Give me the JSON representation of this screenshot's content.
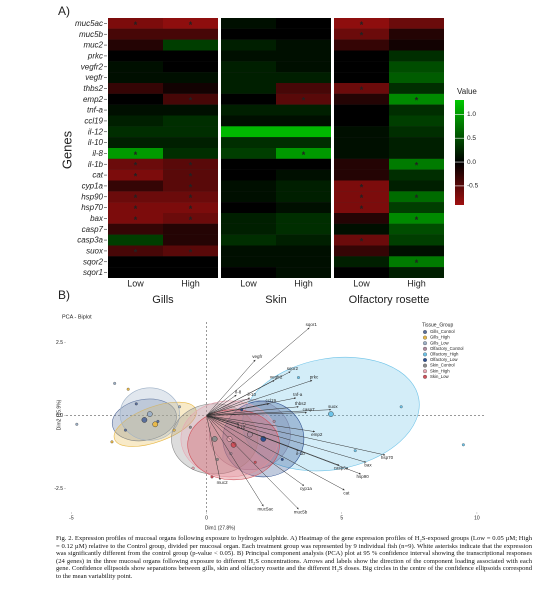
{
  "heatmap": {
    "panel_label": "A)",
    "y_label": "Genes",
    "columns": [
      "Low",
      "High"
    ],
    "facets": [
      "Gills",
      "Skin",
      "Olfactory rosette"
    ],
    "significance_mark": "*",
    "legend_title": "Value",
    "scale_lim": [
      -0.9,
      1.3
    ],
    "scale_ticks": [
      {
        "value": 1,
        "label": "1.0"
      },
      0.5,
      {
        "value": 0,
        "label": "0.0"
      },
      -0.5
    ],
    "negative_color": "#a01010",
    "zero_color": "#000000",
    "positive_color": "#00c800",
    "rows": [
      {
        "gene": "muc5ac",
        "values": [
          -0.7,
          -0.8,
          0.1,
          0.0,
          -0.8,
          -0.6
        ],
        "significant": [
          true,
          true,
          false,
          false,
          true,
          false
        ]
      },
      {
        "gene": "muc5b",
        "values": [
          -0.4,
          -0.4,
          0.0,
          0.0,
          -0.6,
          -0.2
        ],
        "significant": [
          false,
          false,
          false,
          false,
          true,
          false
        ]
      },
      {
        "gene": "muc2",
        "values": [
          -0.2,
          0.4,
          0.2,
          0.1,
          -0.3,
          -0.1
        ],
        "significant": [
          false,
          false,
          false,
          false,
          false,
          false
        ]
      },
      {
        "gene": "prkc",
        "values": [
          0.0,
          0.0,
          0.1,
          0.1,
          0.0,
          0.3
        ],
        "significant": [
          false,
          false,
          false,
          false,
          false,
          false
        ]
      },
      {
        "gene": "vegfr2",
        "values": [
          0.1,
          0.0,
          0.2,
          0.1,
          0.0,
          0.5
        ],
        "significant": [
          false,
          false,
          false,
          false,
          false,
          false
        ]
      },
      {
        "gene": "vegfr",
        "values": [
          0.1,
          0.1,
          0.2,
          0.2,
          0.0,
          0.6
        ],
        "significant": [
          false,
          false,
          false,
          false,
          false,
          false
        ]
      },
      {
        "gene": "thbs2",
        "values": [
          -0.3,
          -0.1,
          0.2,
          -0.4,
          -0.6,
          0.3
        ],
        "significant": [
          false,
          false,
          false,
          false,
          true,
          false
        ]
      },
      {
        "gene": "emp2",
        "values": [
          0.0,
          -0.4,
          0.0,
          -0.5,
          -0.2,
          0.9
        ],
        "significant": [
          false,
          true,
          false,
          true,
          false,
          true
        ]
      },
      {
        "gene": "tnf-a",
        "values": [
          0.1,
          0.1,
          0.2,
          0.2,
          0.0,
          0.3
        ],
        "significant": [
          false,
          false,
          false,
          false,
          false,
          false
        ]
      },
      {
        "gene": "ccl19",
        "values": [
          0.2,
          0.3,
          0.1,
          0.1,
          0.0,
          0.4
        ],
        "significant": [
          false,
          false,
          false,
          false,
          false,
          false
        ]
      },
      {
        "gene": "il-12",
        "values": [
          0.3,
          0.3,
          1.2,
          1.2,
          0.1,
          0.3
        ],
        "significant": [
          false,
          false,
          false,
          false,
          false,
          false
        ]
      },
      {
        "gene": "il-10",
        "values": [
          0.2,
          0.2,
          0.3,
          0.3,
          0.1,
          0.2
        ],
        "significant": [
          false,
          false,
          false,
          false,
          false,
          false
        ]
      },
      {
        "gene": "il-8",
        "values": [
          1.0,
          0.3,
          0.4,
          1.0,
          0.1,
          0.2
        ],
        "significant": [
          true,
          false,
          false,
          true,
          false,
          false
        ]
      },
      {
        "gene": "il-1b",
        "values": [
          -0.6,
          -0.5,
          0.0,
          0.0,
          -0.2,
          0.8
        ],
        "significant": [
          true,
          true,
          false,
          false,
          false,
          true
        ]
      },
      {
        "gene": "cat",
        "values": [
          -0.7,
          -0.5,
          0.0,
          0.1,
          -0.2,
          0.3
        ],
        "significant": [
          true,
          true,
          false,
          false,
          false,
          false
        ]
      },
      {
        "gene": "cyp1a",
        "values": [
          -0.3,
          -0.5,
          0.1,
          0.2,
          -0.7,
          0.2
        ],
        "significant": [
          false,
          true,
          false,
          false,
          true,
          false
        ]
      },
      {
        "gene": "hsp90",
        "values": [
          -0.6,
          -0.6,
          0.1,
          0.2,
          -0.7,
          0.7
        ],
        "significant": [
          true,
          true,
          false,
          false,
          true,
          true
        ]
      },
      {
        "gene": "hsp70",
        "values": [
          -0.7,
          -0.7,
          0.0,
          0.1,
          -0.7,
          0.4
        ],
        "significant": [
          true,
          true,
          false,
          false,
          true,
          false
        ]
      },
      {
        "gene": "bax",
        "values": [
          -0.7,
          -0.6,
          0.2,
          0.3,
          -0.2,
          0.9
        ],
        "significant": [
          true,
          true,
          false,
          false,
          false,
          true
        ]
      },
      {
        "gene": "casp7",
        "values": [
          -0.3,
          -0.2,
          0.2,
          0.3,
          0.1,
          0.5
        ],
        "significant": [
          false,
          false,
          false,
          false,
          false,
          false
        ]
      },
      {
        "gene": "casp3a",
        "values": [
          0.4,
          -0.2,
          0.3,
          0.2,
          -0.6,
          0.4
        ],
        "significant": [
          false,
          false,
          false,
          false,
          true,
          false
        ]
      },
      {
        "gene": "suox",
        "values": [
          -0.4,
          -0.5,
          0.1,
          0.1,
          -0.3,
          0.1
        ],
        "significant": [
          true,
          true,
          false,
          false,
          false,
          false
        ]
      },
      {
        "gene": "sqor2",
        "values": [
          0.0,
          0.0,
          0.1,
          0.1,
          0.2,
          0.8
        ],
        "significant": [
          false,
          false,
          false,
          false,
          false,
          true
        ]
      },
      {
        "gene": "sqor1",
        "values": [
          0.0,
          0.0,
          0.0,
          0.1,
          0.0,
          0.2
        ],
        "significant": [
          false,
          false,
          false,
          false,
          false,
          false
        ]
      }
    ]
  },
  "pca": {
    "panel_label": "B)",
    "title": "PCA - Biplot",
    "x_label": "Dim1 (27.8%)",
    "y_label": "Dim2 (15.9%)",
    "xlim": [
      -5.2,
      10.3
    ],
    "ylim": [
      -3.3,
      3.2
    ],
    "xticks": [
      -5,
      0,
      5,
      10
    ],
    "yticks": [
      2.5,
      {
        "value": 0,
        "label": "0.0"
      },
      -2.5
    ],
    "legend_title": "Tissue_Group",
    "loadings": [
      {
        "name": "vegfr",
        "x": 1.8,
        "y": 1.9
      },
      {
        "name": "sqor2",
        "x": 3.1,
        "y": 1.5
      },
      {
        "name": "vegfr2",
        "x": 2.5,
        "y": 1.2
      },
      {
        "name": "prkc",
        "x": 3.9,
        "y": 1.2
      },
      {
        "name": "sqor1",
        "x": 3.8,
        "y": 3.0
      },
      {
        "name": "il-8",
        "x": 1.1,
        "y": 0.7
      },
      {
        "name": "il-10",
        "x": 1.6,
        "y": 0.6
      },
      {
        "name": "ccl19",
        "x": 2.3,
        "y": 0.4
      },
      {
        "name": "tnf-a",
        "x": 3.3,
        "y": 0.6
      },
      {
        "name": "thbs2",
        "x": 3.4,
        "y": 0.3
      },
      {
        "name": "casp7",
        "x": 3.7,
        "y": 0.1
      },
      {
        "name": "suox",
        "x": 4.6,
        "y": 0.2
      },
      {
        "name": "il-12",
        "x": 1.2,
        "y": -0.3
      },
      {
        "name": "emp2",
        "x": 4.0,
        "y": -0.55
      },
      {
        "name": "hsp70",
        "x": 6.6,
        "y": -1.35
      },
      {
        "name": "bax",
        "x": 5.9,
        "y": -1.6
      },
      {
        "name": "casp3a",
        "x": 4.9,
        "y": -1.7
      },
      {
        "name": "hsp90",
        "x": 5.7,
        "y": -2.0
      },
      {
        "name": "il-1b",
        "x": 3.4,
        "y": -1.2
      },
      {
        "name": "cyp1a",
        "x": 3.6,
        "y": -2.4
      },
      {
        "name": "cat",
        "x": 5.1,
        "y": -2.55
      },
      {
        "name": "muc5ac",
        "x": 2.1,
        "y": -3.1
      },
      {
        "name": "muc5b",
        "x": 3.4,
        "y": -3.2
      },
      {
        "name": "muc2",
        "x": 0.5,
        "y": -2.2
      }
    ],
    "groups": [
      {
        "name": "Gills_Control",
        "color": "#5a6f9c",
        "center": [
          -2.3,
          -0.15
        ],
        "rx": 1.2,
        "ry": 0.7,
        "angle": -10,
        "points": [
          [
            -2.6,
            0.4
          ],
          [
            -1.8,
            -0.2
          ],
          [
            -3.0,
            -0.5
          ]
        ]
      },
      {
        "name": "Gills_High",
        "color": "#e8b94a",
        "center": [
          -1.9,
          -0.3
        ],
        "rx": 1.6,
        "ry": 0.6,
        "angle": -20,
        "points": [
          [
            -1.2,
            -0.5
          ],
          [
            -3.5,
            -0.9
          ],
          [
            -2.9,
            0.9
          ]
        ]
      },
      {
        "name": "Gills_Low",
        "color": "#9db0c6",
        "center": [
          -2.1,
          0.05
        ],
        "rx": 1.1,
        "ry": 0.9,
        "angle": 0,
        "points": [
          [
            -4.8,
            -0.3
          ],
          [
            -3.4,
            1.1
          ],
          [
            -1.0,
            0.3
          ]
        ]
      },
      {
        "name": "Olfactory_Control",
        "color": "#b08a9e",
        "center": [
          1.6,
          -0.65
        ],
        "rx": 1.5,
        "ry": 1.2,
        "angle": 0,
        "points": [
          [
            2.5,
            -0.2
          ],
          [
            0.9,
            -1.3
          ]
        ]
      },
      {
        "name": "Olfactory_High",
        "color": "#6ec3e8",
        "center": [
          4.6,
          0.05
        ],
        "rx": 3.3,
        "ry": 1.9,
        "angle": -10,
        "points": [
          [
            7.2,
            0.3
          ],
          [
            5.5,
            -1.2
          ],
          [
            9.5,
            -1.0
          ],
          [
            3.4,
            1.3
          ]
        ]
      },
      {
        "name": "Olfactory_Low",
        "color": "#2d4f8f",
        "center": [
          2.1,
          -0.8
        ],
        "rx": 1.5,
        "ry": 1.3,
        "angle": 0,
        "points": [
          [
            2.8,
            -1.5
          ],
          [
            1.3,
            0.2
          ]
        ]
      },
      {
        "name": "Skin_Control",
        "color": "#8c8c8c",
        "center": [
          0.3,
          -0.8
        ],
        "rx": 1.6,
        "ry": 1.2,
        "angle": 0,
        "points": [
          [
            0.4,
            -1.5
          ],
          [
            -0.6,
            -0.4
          ]
        ]
      },
      {
        "name": "Skin_High",
        "color": "#e8a6b2",
        "center": [
          0.85,
          -0.8
        ],
        "rx": 1.8,
        "ry": 1.3,
        "angle": 0,
        "points": [
          [
            1.4,
            -0.3
          ],
          [
            -0.5,
            -1.8
          ]
        ]
      },
      {
        "name": "Skin_Low",
        "color": "#d0505a",
        "center": [
          1.0,
          -1.0
        ],
        "rx": 1.7,
        "ry": 1.2,
        "angle": 0,
        "points": [
          [
            1.8,
            -1.6
          ],
          [
            0.2,
            -2.1
          ]
        ]
      }
    ]
  },
  "caption": "Fig. 2. Expression profiles of mucosal organs following exposure to hydrogen sulphide. A) Heatmap of the gene expression profiles of H₂S-exposed groups (Low = 0.05 µM; High = 0.12 µM) relative to the Control group, divided per mucosal organ. Each treatment group was represented by 9 individual fish (n=9). White asterisks indicate that the expression was significantly different from the control group (p-value < 0.05). B) Principal component analysis (PCA) plot at 95 % confidence interval showing the transcriptional responses (24 genes) in the three mucosal organs following exposure to different H₂S concentrations. Arrows and labels show the direction of the component loading associated with each gene. Confidence ellipsoids show separations between gills, skin and olfactory rosette and the different H₂S doses. Big circles in the centre of the confidence ellipsoids correspond to the mean variability point."
}
